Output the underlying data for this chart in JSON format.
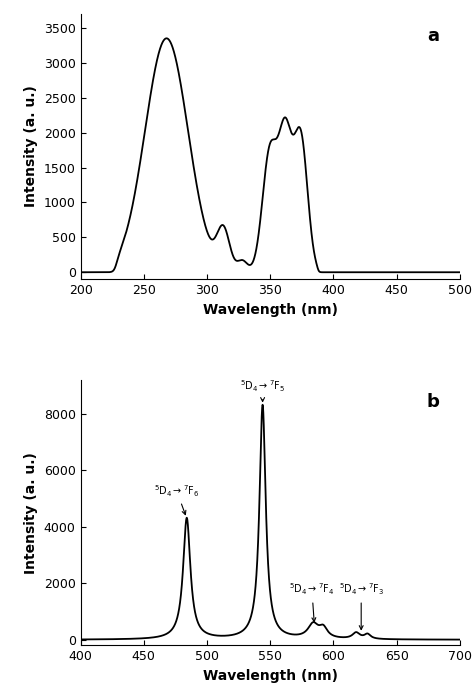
{
  "panel_a": {
    "xlabel": "Wavelength (nm)",
    "ylabel": "Intensity (a. u.)",
    "label": "a",
    "xlim": [
      200,
      500
    ],
    "ylim": [
      -100,
      3700
    ],
    "yticks": [
      0,
      500,
      1000,
      1500,
      2000,
      2500,
      3000,
      3500
    ],
    "xticks": [
      200,
      250,
      300,
      350,
      400,
      450,
      500
    ]
  },
  "panel_b": {
    "xlabel": "Wavelength (nm)",
    "ylabel": "Intensity (a. u.)",
    "label": "b",
    "xlim": [
      400,
      700
    ],
    "ylim": [
      -200,
      9200
    ],
    "yticks": [
      0,
      2000,
      4000,
      6000,
      8000
    ],
    "xticks": [
      400,
      450,
      500,
      550,
      600,
      650,
      700
    ]
  },
  "line_color": "#000000",
  "line_width": 1.3,
  "background_color": "#ffffff",
  "font_size": 9,
  "label_font_size": 10
}
